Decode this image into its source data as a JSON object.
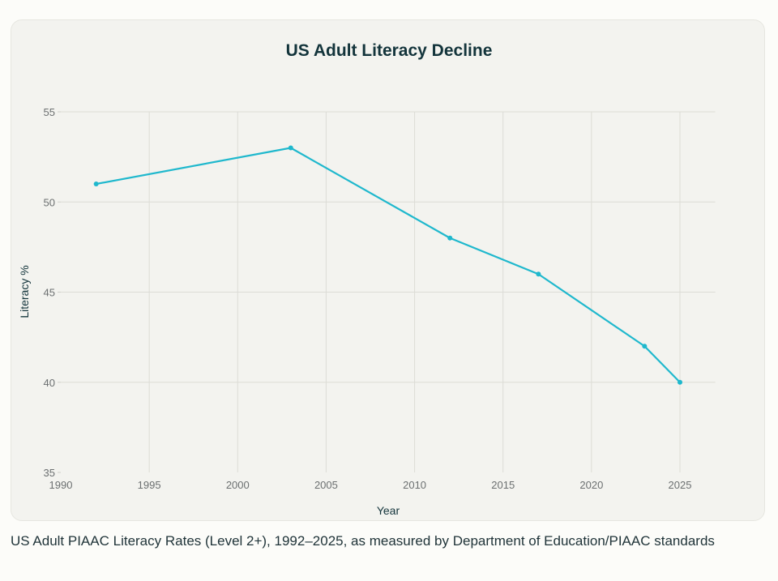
{
  "chart_data": {
    "type": "line",
    "title": "US Adult Literacy Decline",
    "xlabel": "Year",
    "ylabel": "Literacy %",
    "xlim": [
      1990,
      2027
    ],
    "ylim": [
      35,
      55
    ],
    "x_ticks": [
      1990,
      1995,
      2000,
      2005,
      2010,
      2015,
      2020,
      2025
    ],
    "y_ticks": [
      35,
      40,
      45,
      50,
      55
    ],
    "grid": true,
    "series": [
      {
        "name": "Literacy %",
        "color": "#1fb8cd",
        "x": [
          1992,
          2003,
          2012,
          2017,
          2023,
          2025
        ],
        "values": [
          51,
          53,
          48,
          46,
          42,
          40
        ]
      }
    ]
  },
  "caption": "US Adult PIAAC Literacy Rates (Level 2+), 1992–2025, as measured by Department of Education/PIAAC standards"
}
